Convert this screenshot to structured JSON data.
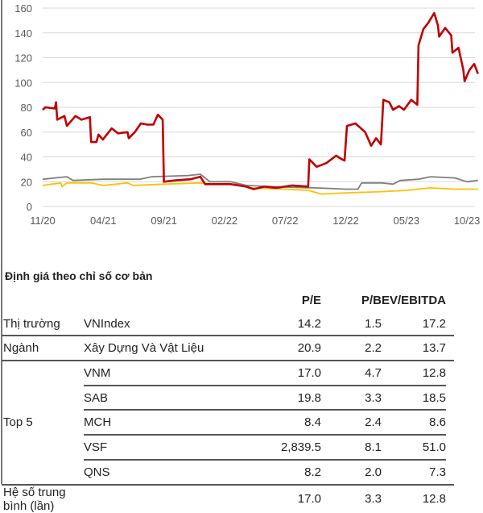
{
  "chart_data": {
    "type": "line",
    "ylim": [
      0,
      160
    ],
    "yticks": [
      "0",
      "20",
      "40",
      "60",
      "80",
      "100",
      "120",
      "140",
      "160"
    ],
    "xticks": [
      "11/20",
      "04/21",
      "09/21",
      "02/22",
      "07/22",
      "12/22",
      "05/23",
      "10/23"
    ],
    "grid": "horizontal",
    "colors": {
      "red": "#c00000",
      "gray": "#7f7f7f",
      "yellow": "#ffc000"
    },
    "series": [
      {
        "color": "#c00000",
        "points": [
          [
            "2020-11-01",
            78
          ],
          [
            "2020-11-08",
            80
          ],
          [
            "2020-12-01",
            79
          ],
          [
            "2020-12-04",
            84
          ],
          [
            "2020-12-07",
            70
          ],
          [
            "2020-12-25",
            73
          ],
          [
            "2021-01-01",
            65
          ],
          [
            "2021-01-22",
            73
          ],
          [
            "2021-02-07",
            70
          ],
          [
            "2021-02-28",
            72
          ],
          [
            "2021-03-01",
            52
          ],
          [
            "2021-03-14",
            52
          ],
          [
            "2021-03-19",
            58
          ],
          [
            "2021-03-30",
            54
          ],
          [
            "2021-04-22",
            63
          ],
          [
            "2021-05-07",
            59
          ],
          [
            "2021-06-01",
            60
          ],
          [
            "2021-06-04",
            55
          ],
          [
            "2021-06-19",
            60
          ],
          [
            "2021-07-04",
            67
          ],
          [
            "2021-07-20",
            66
          ],
          [
            "2021-08-05",
            66
          ],
          [
            "2021-08-16",
            74
          ],
          [
            "2021-08-28",
            70
          ],
          [
            "2021-09-01",
            20
          ],
          [
            "2021-09-28",
            21
          ],
          [
            "2021-11-07",
            22
          ],
          [
            "2021-12-01",
            24
          ],
          [
            "2021-12-13",
            18
          ],
          [
            "2022-01-08",
            18
          ],
          [
            "2022-02-16",
            18
          ],
          [
            "2022-03-25",
            16
          ],
          [
            "2022-04-13",
            14
          ],
          [
            "2022-05-10",
            16
          ],
          [
            "2022-06-10",
            15
          ],
          [
            "2022-07-19",
            17
          ],
          [
            "2022-08-28",
            16
          ],
          [
            "2022-09-01",
            38
          ],
          [
            "2022-09-19",
            32
          ],
          [
            "2022-10-13",
            35
          ],
          [
            "2022-11-07",
            41
          ],
          [
            "2022-11-22",
            38
          ],
          [
            "2022-11-28",
            37
          ],
          [
            "2022-12-04",
            65
          ],
          [
            "2022-12-25",
            67
          ],
          [
            "2023-01-19",
            60
          ],
          [
            "2023-02-04",
            49
          ],
          [
            "2023-02-16",
            55
          ],
          [
            "2023-02-28",
            50
          ],
          [
            "2023-03-04",
            86
          ],
          [
            "2023-03-19",
            84
          ],
          [
            "2023-03-28",
            78
          ],
          [
            "2023-04-13",
            81
          ],
          [
            "2023-04-25",
            78
          ],
          [
            "2023-05-13",
            86
          ],
          [
            "2023-05-28",
            82
          ],
          [
            "2023-06-01",
            130
          ],
          [
            "2023-06-13",
            143
          ],
          [
            "2023-06-25",
            148
          ],
          [
            "2023-07-10",
            156
          ],
          [
            "2023-07-19",
            146
          ],
          [
            "2023-07-22",
            137
          ],
          [
            "2023-08-07",
            144
          ],
          [
            "2023-08-22",
            138
          ],
          [
            "2023-08-25",
            124
          ],
          [
            "2023-09-10",
            128
          ],
          [
            "2023-09-22",
            110
          ],
          [
            "2023-09-25",
            101
          ],
          [
            "2023-10-07",
            110
          ],
          [
            "2023-10-19",
            115
          ],
          [
            "2023-10-28",
            107
          ]
        ]
      },
      {
        "color": "#7f7f7f",
        "points": [
          [
            "2020-11-01",
            22
          ],
          [
            "2021-01-01",
            24
          ],
          [
            "2021-01-16",
            21
          ],
          [
            "2021-04-01",
            22
          ],
          [
            "2021-07-01",
            22
          ],
          [
            "2021-08-01",
            24
          ],
          [
            "2021-11-01",
            25
          ],
          [
            "2021-12-01",
            26
          ],
          [
            "2021-12-25",
            20
          ],
          [
            "2022-02-16",
            20
          ],
          [
            "2022-03-25",
            17
          ],
          [
            "2022-06-01",
            16
          ],
          [
            "2022-08-28",
            15
          ],
          [
            "2022-09-16",
            15
          ],
          [
            "2022-12-01",
            14
          ],
          [
            "2023-01-01",
            14
          ],
          [
            "2023-01-10",
            19
          ],
          [
            "2023-03-01",
            19
          ],
          [
            "2023-03-28",
            18
          ],
          [
            "2023-04-16",
            21
          ],
          [
            "2023-06-01",
            22
          ],
          [
            "2023-07-01",
            24
          ],
          [
            "2023-09-01",
            23
          ],
          [
            "2023-10-01",
            20
          ],
          [
            "2023-10-28",
            21
          ]
        ]
      },
      {
        "color": "#ffc000",
        "points": [
          [
            "2020-11-01",
            17
          ],
          [
            "2020-12-16",
            19
          ],
          [
            "2020-12-19",
            16
          ],
          [
            "2021-01-01",
            19
          ],
          [
            "2021-03-01",
            19
          ],
          [
            "2021-04-01",
            17
          ],
          [
            "2021-06-01",
            19
          ],
          [
            "2021-06-16",
            17
          ],
          [
            "2021-09-01",
            18
          ],
          [
            "2021-12-01",
            19
          ],
          [
            "2022-01-01",
            18
          ],
          [
            "2022-03-01",
            18
          ],
          [
            "2022-04-01",
            15
          ],
          [
            "2022-07-01",
            14
          ],
          [
            "2022-08-28",
            13
          ],
          [
            "2022-10-01",
            10
          ],
          [
            "2022-12-01",
            11
          ],
          [
            "2023-03-01",
            12
          ],
          [
            "2023-05-01",
            13
          ],
          [
            "2023-07-01",
            15
          ],
          [
            "2023-09-01",
            14
          ],
          [
            "2023-10-28",
            14
          ]
        ]
      }
    ]
  },
  "table": {
    "title": "Định giá theo chỉ số cơ bản",
    "headers": [
      "P/E",
      "P/B",
      "EV/EBITDA"
    ],
    "rows": [
      {
        "group": "Thị trường",
        "name": "VNIndex",
        "pe": "14.2",
        "pb": "1.5",
        "ev": "17.2"
      },
      {
        "group": "Ngành",
        "name": "Xây Dựng Và Vật Liệu",
        "pe": "20.9",
        "pb": "2.2",
        "ev": "13.7"
      },
      {
        "group": "",
        "name": "VNM",
        "pe": "17.0",
        "pb": "4.7",
        "ev": "12.8"
      },
      {
        "group": "",
        "name": "SAB",
        "pe": "19.8",
        "pb": "3.3",
        "ev": "18.5"
      },
      {
        "group": "Top 5",
        "name": "MCH",
        "pe": "8.4",
        "pb": "2.4",
        "ev": "8.6"
      },
      {
        "group": "",
        "name": "VSF",
        "pe": "2,839.5",
        "pb": "8.1",
        "ev": "51.0"
      },
      {
        "group": "",
        "name": "QNS",
        "pe": "8.2",
        "pb": "2.0",
        "ev": "7.3"
      },
      {
        "group": "Hệ số trung bình (lần)",
        "name": "",
        "pe": "17.0",
        "pb": "3.3",
        "ev": "12.8"
      }
    ]
  }
}
